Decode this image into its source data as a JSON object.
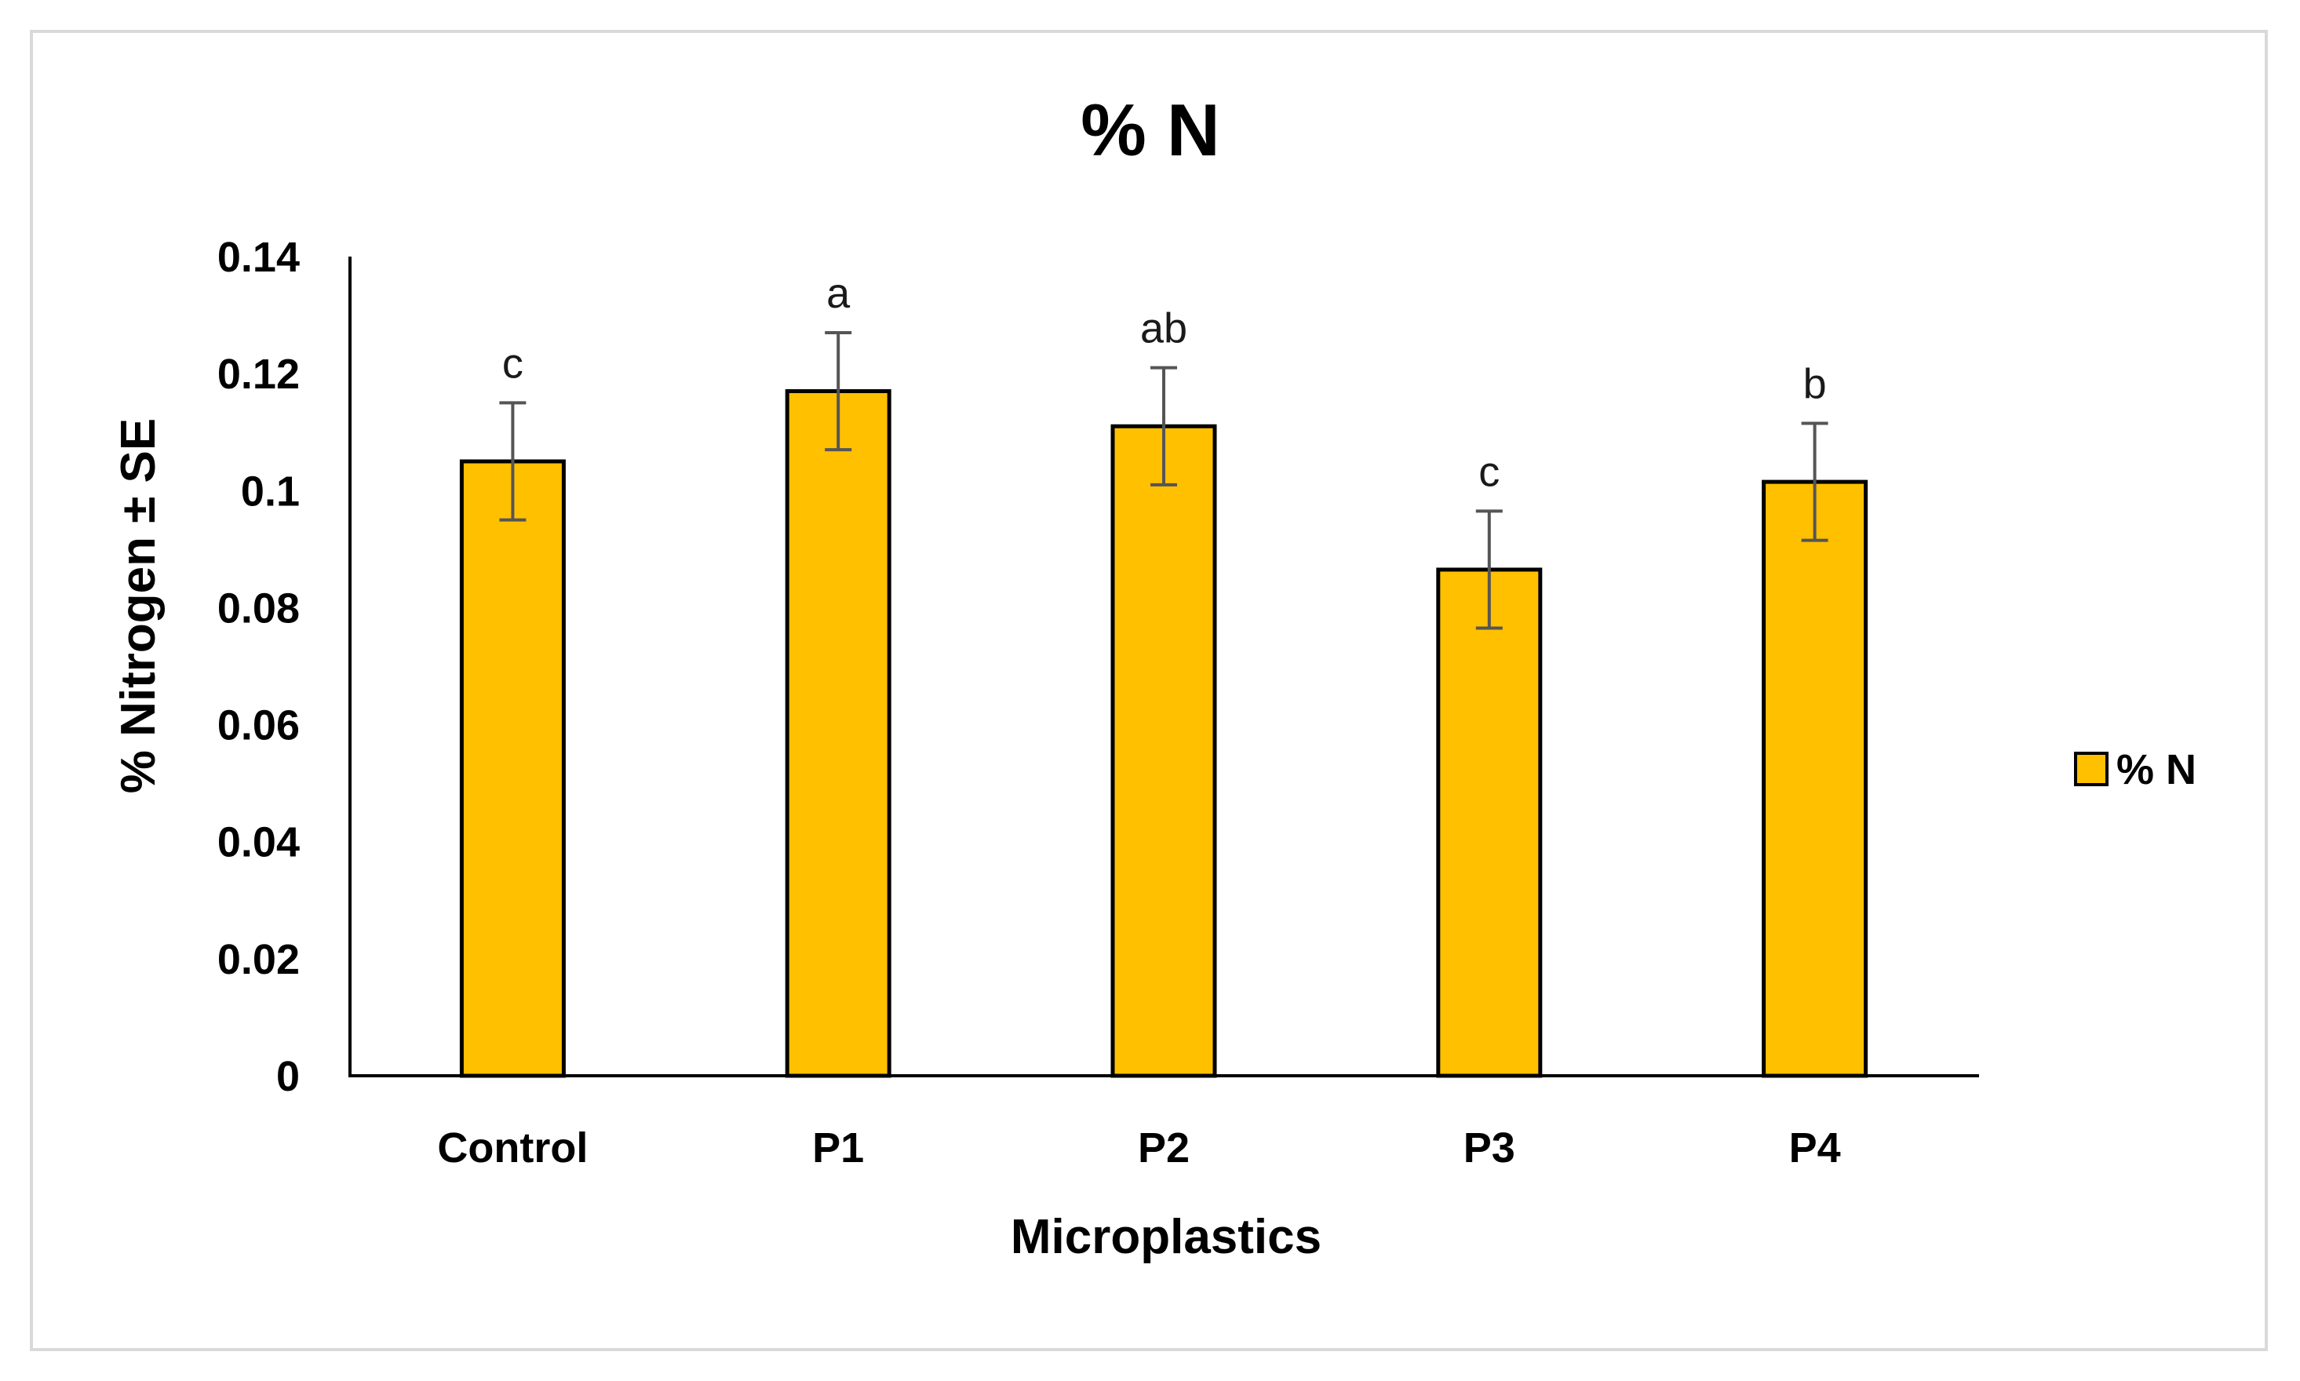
{
  "chart_data": {
    "type": "bar",
    "title": "% N",
    "xlabel": "Microplastics",
    "ylabel": "% Nitrogen ± SE",
    "categories": [
      "Control",
      "P1",
      "P2",
      "P3",
      "P4"
    ],
    "series": [
      {
        "name": "% N",
        "values": [
          0.105,
          0.117,
          0.111,
          0.0865,
          0.1015
        ],
        "errors": [
          0.01,
          0.01,
          0.01,
          0.01,
          0.01
        ],
        "annotations": [
          "c",
          "a",
          "ab",
          "c",
          "b"
        ],
        "color": "#FFC000"
      }
    ],
    "ylim": [
      0,
      0.14
    ],
    "yticks": [
      0,
      0.02,
      0.04,
      0.06,
      0.08,
      0.1,
      0.12,
      0.14
    ],
    "ytick_labels": [
      "0",
      "0.02",
      "0.04",
      "0.06",
      "0.08",
      "0.1",
      "0.12",
      "0.14"
    ],
    "grid": false,
    "legend_position": "right",
    "colors": {
      "bar_fill": "#FFC000",
      "bar_stroke": "#000000",
      "error_bar": "#555555",
      "axis": "#000000",
      "frame_border": "#d9d9d9"
    }
  }
}
